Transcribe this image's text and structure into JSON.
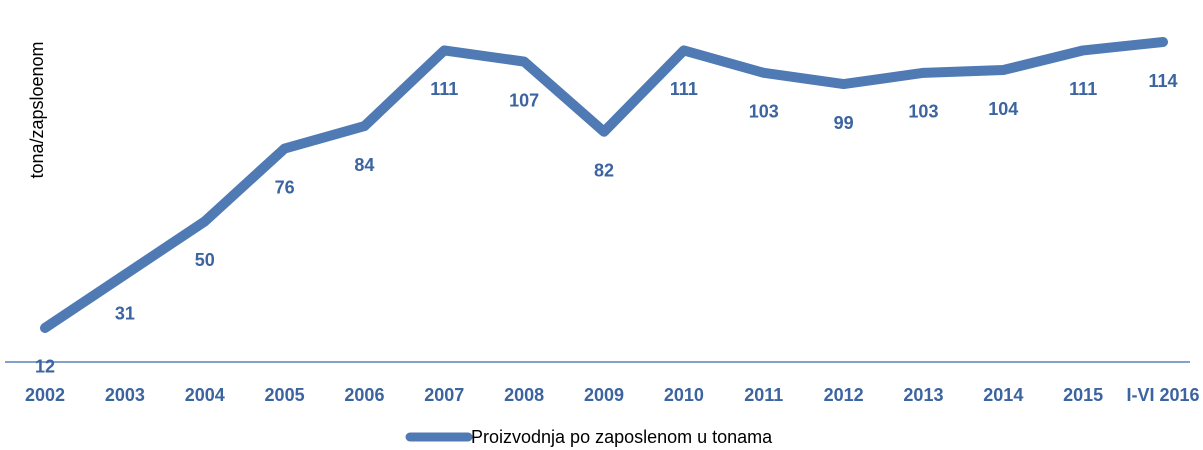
{
  "chart_data": {
    "type": "line",
    "y_label": "tona/zapsloenom",
    "categories": [
      "2002",
      "2003",
      "2004",
      "2005",
      "2006",
      "2007",
      "2008",
      "2009",
      "2010",
      "2011",
      "2012",
      "2013",
      "2014",
      "2015",
      "I-VI 2016"
    ],
    "series": [
      {
        "name": "Proizvodnja po zaposlenom u tonama",
        "color": "#4f7ab4",
        "values": [
          12,
          31,
          50,
          76,
          84,
          111,
          107,
          82,
          111,
          103,
          99,
          103,
          104,
          111,
          114
        ]
      }
    ],
    "ylim": [
      0,
      115
    ]
  }
}
